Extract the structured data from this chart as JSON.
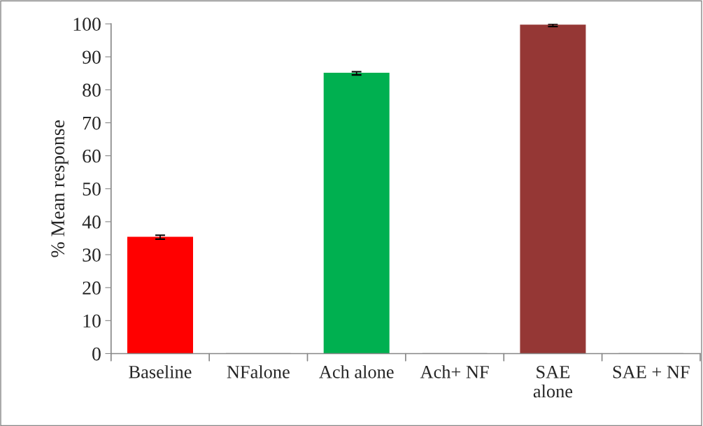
{
  "chart_data": {
    "type": "bar",
    "ylabel": "% Mean response",
    "categories": [
      "Baseline",
      "NFalone",
      "Ach alone",
      "Ach+ NF",
      "SAE\nalone",
      "SAE + NF"
    ],
    "values": [
      35.3,
      0,
      85.0,
      0,
      99.6,
      0
    ],
    "errors": [
      0.6,
      null,
      0.5,
      null,
      0.4,
      null
    ],
    "colors": [
      "#ff0000",
      "#a6a6a6",
      "#00b050",
      "#a6a6a6",
      "#953735",
      "#a6a6a6"
    ],
    "ylim": [
      0,
      100
    ],
    "yticks": [
      0,
      10,
      20,
      30,
      40,
      50,
      60,
      70,
      80,
      90,
      100
    ],
    "grid": false
  }
}
